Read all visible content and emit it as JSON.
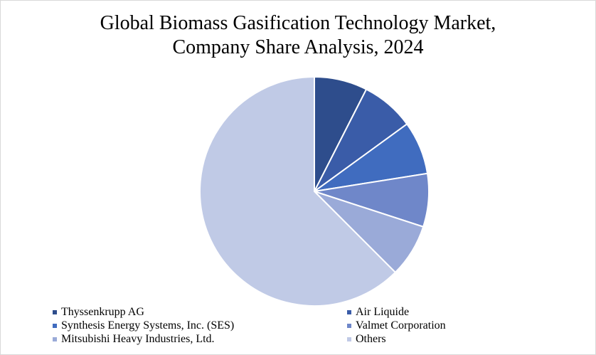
{
  "chart_data": {
    "type": "pie",
    "title": "Global Biomass Gasification Technology Market, Company Share Analysis, 2024",
    "title_lines": [
      "Global Biomass Gasification Technology Market,",
      "Company Share Analysis, 2024"
    ],
    "legend_position": "bottom",
    "slices": [
      {
        "label": "Thyssenkrupp AG",
        "value": 7.5,
        "color": "#2e4d8c"
      },
      {
        "label": "Air Liquide",
        "value": 7.5,
        "color": "#3a5ca8"
      },
      {
        "label": "Synthesis Energy Systems, Inc. (SES)",
        "value": 7.5,
        "color": "#406cbf"
      },
      {
        "label": "Valmet Corporation",
        "value": 7.5,
        "color": "#6f87c9"
      },
      {
        "label": "Mitsubishi Heavy Industries, Ltd.",
        "value": 7.5,
        "color": "#9aaad8"
      },
      {
        "label": "Others",
        "value": 62.5,
        "color": "#c0cae6"
      }
    ]
  }
}
